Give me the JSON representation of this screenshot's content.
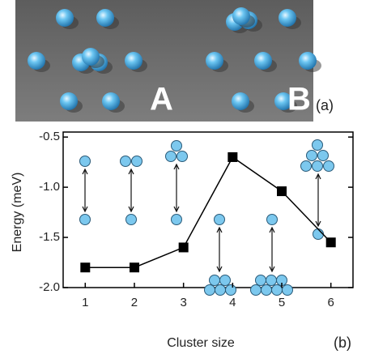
{
  "image_panel": {
    "labels": [
      "A",
      "B"
    ],
    "tag": "(a)"
  },
  "chart_data": {
    "type": "line",
    "tag": "(b)",
    "xlabel": "Cluster size",
    "ylabel": "Energy  (meV)",
    "x": [
      1,
      2,
      3,
      4,
      5,
      6
    ],
    "series": [
      {
        "color": "#000000",
        "values": [
          -1.8,
          -1.8,
          -1.6,
          -0.7,
          -1.04,
          -1.55
        ]
      }
    ],
    "xlim": [
      0.55,
      6.45
    ],
    "xticks": [
      1,
      2,
      3,
      4,
      5,
      6
    ],
    "ylim": [
      -2.0,
      -0.45
    ],
    "yticks": [
      {
        "value": -0.5,
        "label": "-0.5"
      },
      {
        "value": -1.0,
        "label": "-1.0"
      },
      -1.5,
      {
        "value": -2.0,
        "label": "-2.0"
      }
    ]
  }
}
